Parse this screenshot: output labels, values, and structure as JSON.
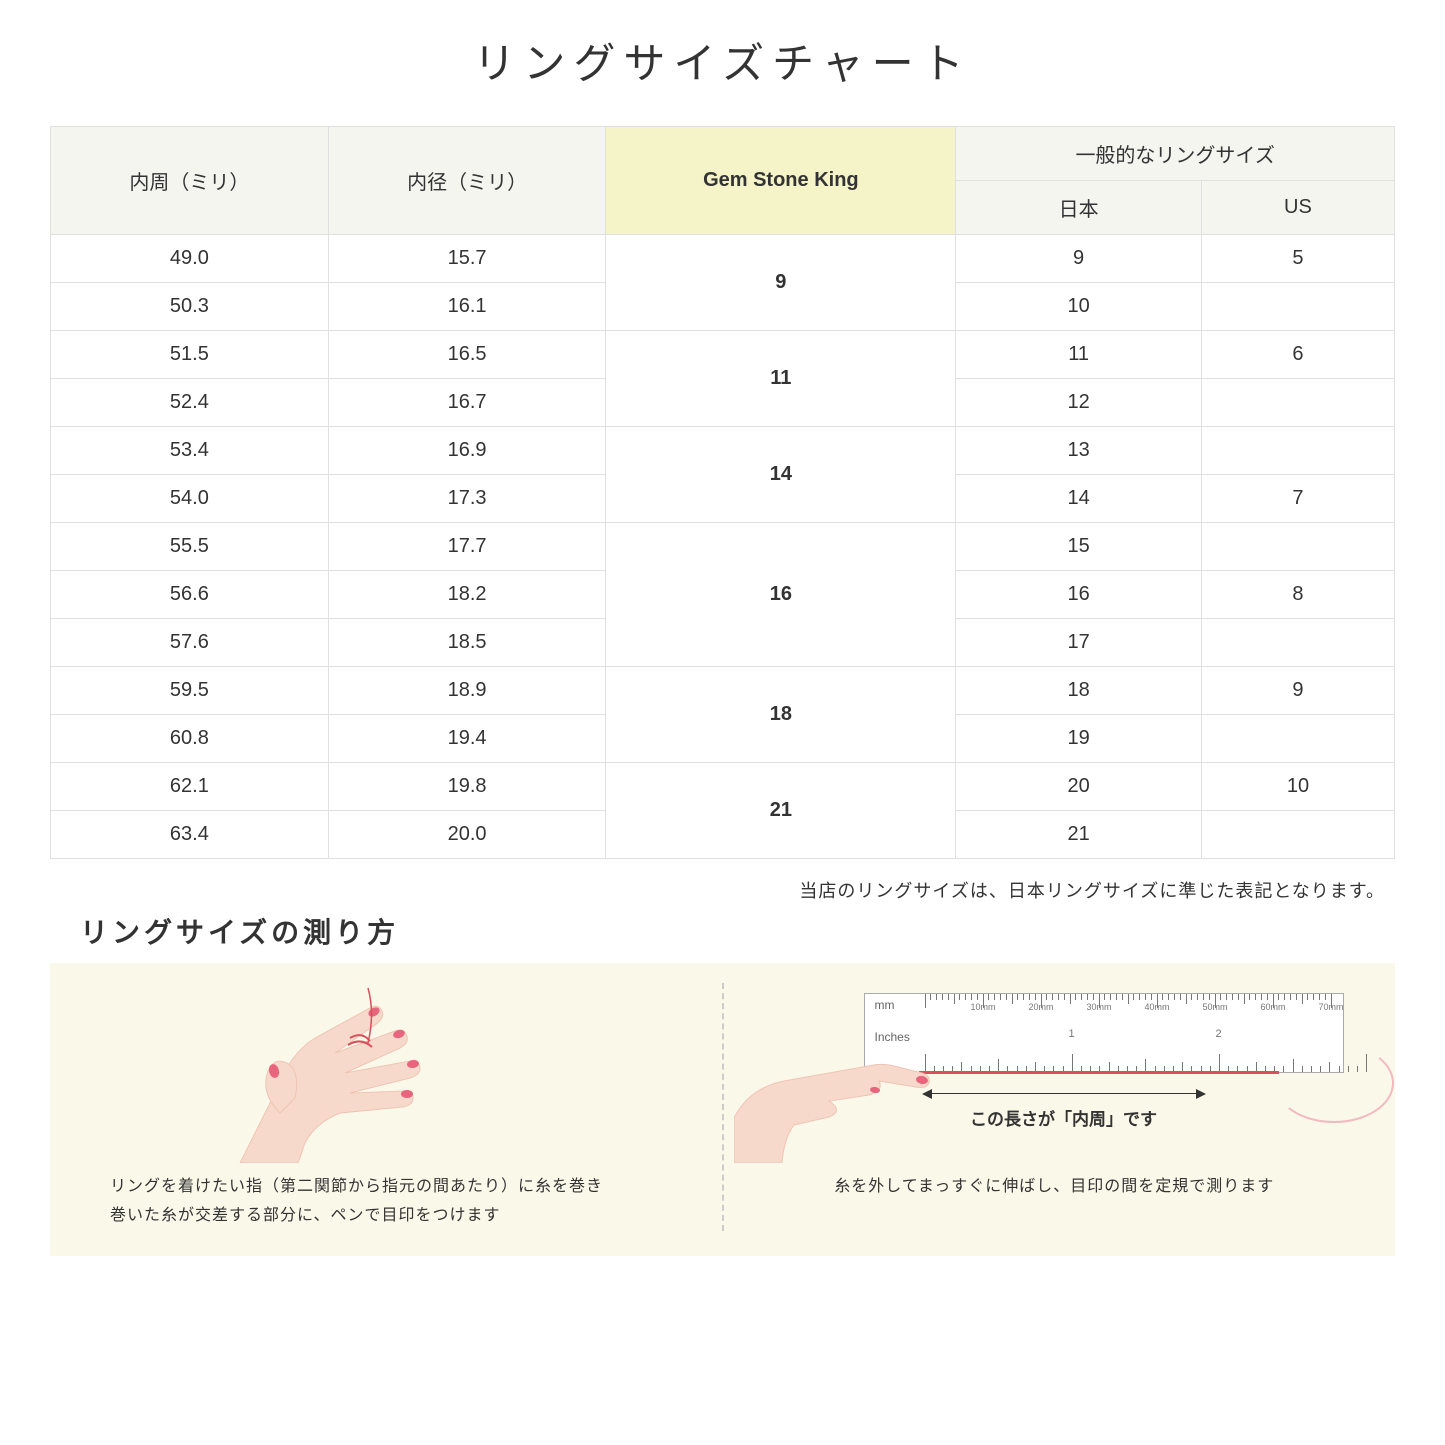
{
  "title": "リングサイズチャート",
  "headers": {
    "circumference": "内周（ミリ）",
    "diameter": "内径（ミリ）",
    "gsk": "Gem Stone King",
    "general": "一般的なリングサイズ",
    "japan": "日本",
    "us": "US"
  },
  "rows": [
    {
      "circ": "49.0",
      "diam": "15.7",
      "gsk": "9",
      "gsk_span": 2,
      "jp": "9",
      "us": "5"
    },
    {
      "circ": "50.3",
      "diam": "16.1",
      "jp": "10",
      "us": ""
    },
    {
      "circ": "51.5",
      "diam": "16.5",
      "gsk": "11",
      "gsk_span": 2,
      "jp": "11",
      "us": "6"
    },
    {
      "circ": "52.4",
      "diam": "16.7",
      "jp": "12",
      "us": ""
    },
    {
      "circ": "53.4",
      "diam": "16.9",
      "gsk": "14",
      "gsk_span": 2,
      "jp": "13",
      "us": ""
    },
    {
      "circ": "54.0",
      "diam": "17.3",
      "jp": "14",
      "us": "7"
    },
    {
      "circ": "55.5",
      "diam": "17.7",
      "gsk": "16",
      "gsk_span": 3,
      "jp": "15",
      "us": ""
    },
    {
      "circ": "56.6",
      "diam": "18.2",
      "jp": "16",
      "us": "8"
    },
    {
      "circ": "57.6",
      "diam": "18.5",
      "jp": "17",
      "us": ""
    },
    {
      "circ": "59.5",
      "diam": "18.9",
      "gsk": "18",
      "gsk_span": 2,
      "jp": "18",
      "us": "9"
    },
    {
      "circ": "60.8",
      "diam": "19.4",
      "jp": "19",
      "us": ""
    },
    {
      "circ": "62.1",
      "diam": "19.8",
      "gsk": "21",
      "gsk_span": 2,
      "jp": "20",
      "us": "10"
    },
    {
      "circ": "63.4",
      "diam": "20.0",
      "jp": "21",
      "us": ""
    }
  ],
  "note": "当店のリングサイズは、日本リングサイズに準じた表記となります。",
  "subtitle": "リングサイズの測り方",
  "instruction_left": "リングを着けたい指（第二関節から指元の間あたり）に糸を巻き\n巻いた糸が交差する部分に、ペンで目印をつけます",
  "instruction_right": "糸を外してまっすぐに伸ばし、目印の間を定規で測ります",
  "arrow_label": "この長さが「内周」です",
  "ruler": {
    "mm_label": "mm",
    "inches_label": "Inches",
    "mm_marks": [
      "10mm",
      "20mm",
      "30mm",
      "40mm",
      "50mm",
      "60mm",
      "70mm"
    ],
    "inch_marks": [
      "1",
      "2"
    ]
  },
  "colors": {
    "header_gray": "#f5f5f0",
    "header_yellow": "#f5f3c8",
    "border": "#e0e0e0",
    "panel_bg": "#faf8e8",
    "skin": "#f7d9cc",
    "skin_shadow": "#f0c4b4",
    "nail": "#e8657e",
    "red": "#d94f5c"
  }
}
